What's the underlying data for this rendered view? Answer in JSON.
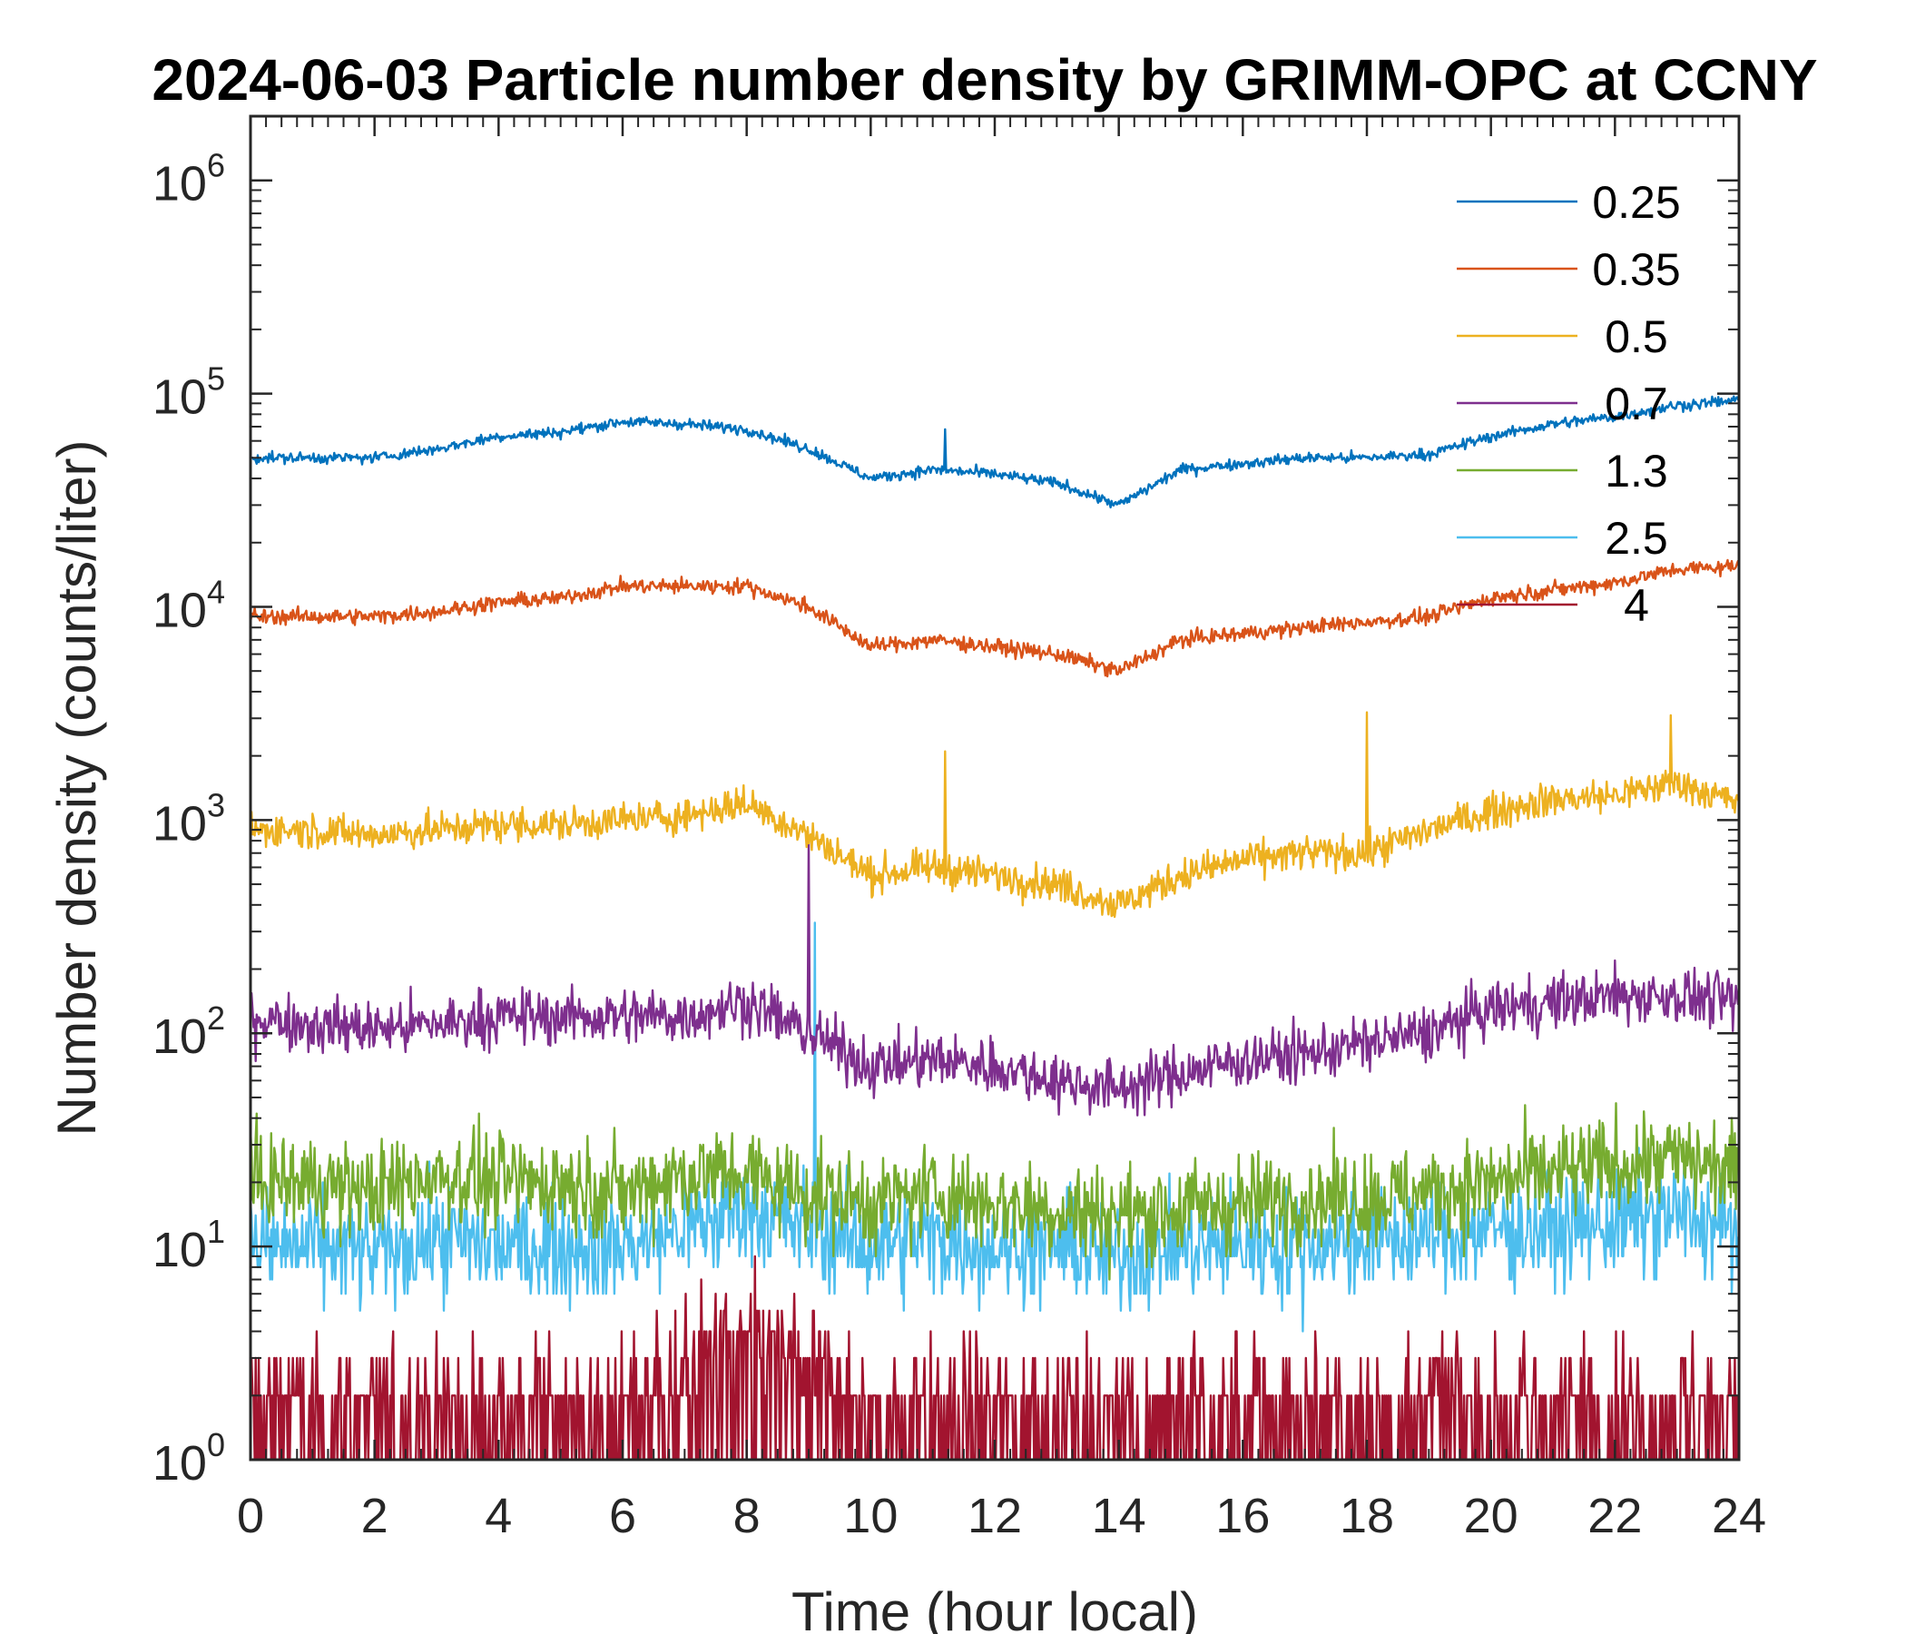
{
  "chart_data": {
    "type": "line",
    "title": "2024-06-03 Particle number density by GRIMM-OPC at CCNY",
    "xlabel": "Time (hour local)",
    "ylabel": "Number density (counts/liter)",
    "xlim": [
      0,
      24
    ],
    "ylim": [
      1,
      2000000
    ],
    "yscale": "log",
    "xticks": [
      0,
      2,
      4,
      6,
      8,
      10,
      12,
      14,
      16,
      18,
      20,
      22,
      24
    ],
    "yticks": [
      {
        "base": "10",
        "exp": "0"
      },
      {
        "base": "10",
        "exp": "1"
      },
      {
        "base": "10",
        "exp": "2"
      },
      {
        "base": "10",
        "exp": "3"
      },
      {
        "base": "10",
        "exp": "4"
      },
      {
        "base": "10",
        "exp": "5"
      },
      {
        "base": "10",
        "exp": "6"
      }
    ],
    "legend_position": "top-right",
    "x": [
      0,
      1,
      2,
      3,
      4,
      5,
      6,
      7,
      8,
      9,
      10,
      11,
      12,
      13,
      14,
      15,
      16,
      17,
      18,
      19,
      20,
      21,
      22,
      23,
      24
    ],
    "series": [
      {
        "name": "0.25",
        "color": "#0072BD",
        "values": [
          50000,
          50000,
          50000,
          55000,
          63000,
          66000,
          74000,
          72000,
          68000,
          55000,
          40000,
          44000,
          42000,
          38000,
          30000,
          44000,
          47000,
          50000,
          50000,
          52000,
          63000,
          72000,
          78000,
          88000,
          93000
        ]
      },
      {
        "name": "0.35",
        "color": "#D95319",
        "values": [
          9000,
          9000,
          9000,
          9500,
          10500,
          11000,
          12500,
          12500,
          12500,
          10000,
          6500,
          7000,
          6500,
          6000,
          5000,
          7000,
          7500,
          8000,
          8500,
          9000,
          11000,
          12000,
          13000,
          15000,
          15500
        ]
      },
      {
        "name": "0.5",
        "color": "#EDB120",
        "values": [
          900,
          900,
          850,
          900,
          950,
          950,
          1000,
          1050,
          1200,
          850,
          550,
          600,
          550,
          500,
          400,
          550,
          650,
          700,
          700,
          900,
          1100,
          1250,
          1300,
          1500,
          1200
        ]
      },
      {
        "name": "0.7",
        "color": "#7E2F8E",
        "values": [
          120,
          110,
          105,
          110,
          120,
          120,
          120,
          120,
          140,
          100,
          70,
          75,
          70,
          60,
          55,
          65,
          75,
          80,
          90,
          100,
          130,
          140,
          150,
          150,
          140
        ]
      },
      {
        "name": "1.3",
        "color": "#77AC30",
        "values": [
          20,
          20,
          18,
          22,
          20,
          20,
          18,
          22,
          22,
          18,
          16,
          18,
          16,
          15,
          14,
          15,
          16,
          17,
          17,
          18,
          20,
          22,
          24,
          26,
          22
        ]
      },
      {
        "name": "2.5",
        "color": "#4DBEEE",
        "values": [
          10,
          10,
          9,
          11,
          10,
          10,
          10,
          12,
          15,
          12,
          10,
          11,
          10,
          10,
          9,
          10,
          10,
          10,
          11,
          11,
          12,
          12,
          13,
          14,
          12
        ]
      },
      {
        "name": "4",
        "color": "#A2142F",
        "values": [
          2,
          2,
          2,
          2,
          2,
          2,
          2,
          3,
          4,
          3,
          2,
          2,
          2,
          2,
          2,
          2,
          2,
          2,
          2,
          2,
          2,
          2,
          2,
          2,
          2
        ]
      }
    ],
    "annotations": [
      {
        "series": "0.7",
        "x": 9.0,
        "y": 800
      },
      {
        "series": "2.5",
        "x": 9.1,
        "y": 330
      },
      {
        "series": "0.5",
        "x": 18.0,
        "y": 3200
      },
      {
        "series": "0.5",
        "x": 22.9,
        "y": 3100
      },
      {
        "series": "0.5",
        "x": 11.2,
        "y": 2100
      },
      {
        "series": "0.25",
        "x": 11.2,
        "y": 68000
      }
    ]
  }
}
